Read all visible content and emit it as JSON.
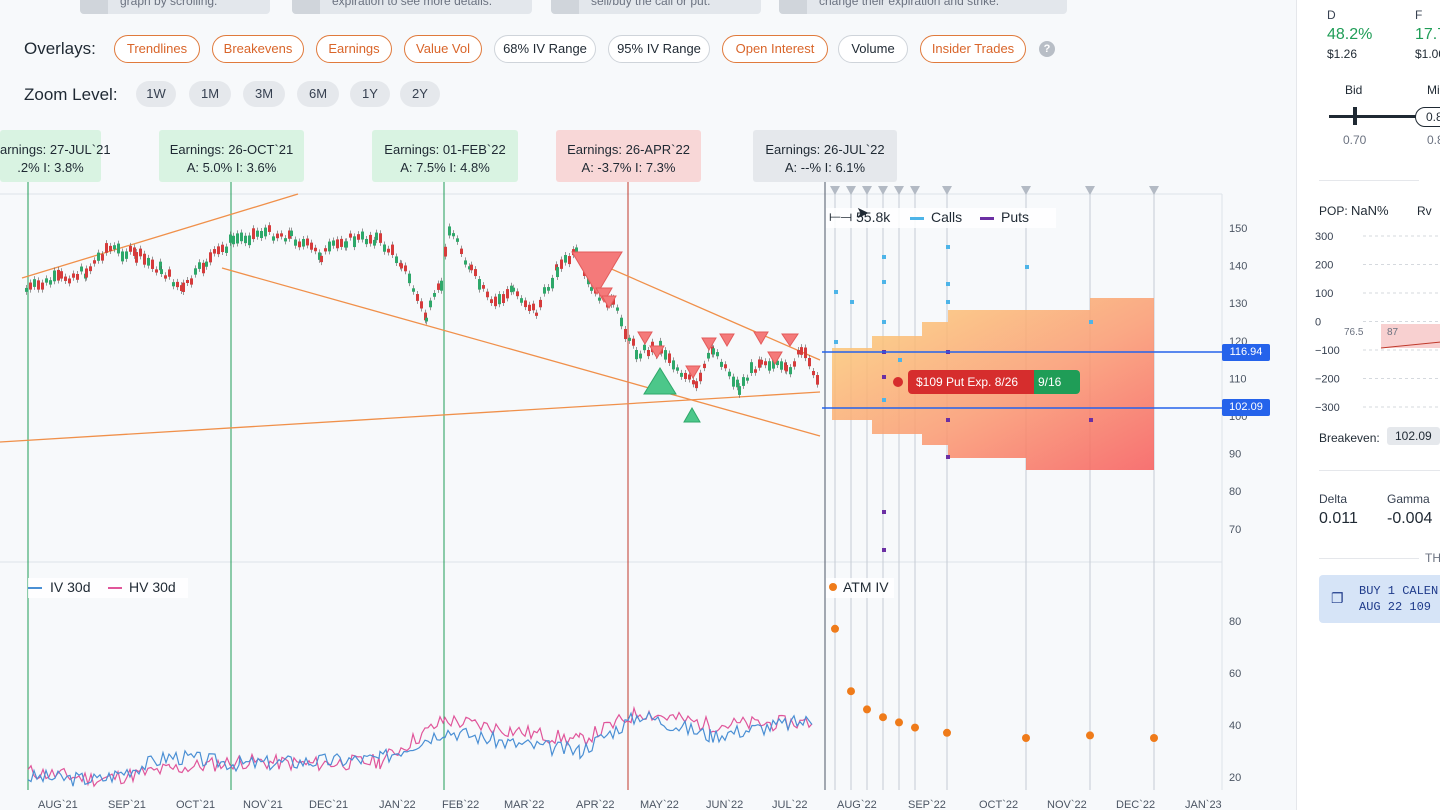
{
  "hints": [
    "graph by scrolling.",
    "expiration to see more details.",
    "sell/buy the call or put.",
    "change their expiration and strike."
  ],
  "overlays": {
    "label": "Overlays:",
    "items": [
      {
        "label": "Trendlines",
        "active": true
      },
      {
        "label": "Breakevens",
        "active": true
      },
      {
        "label": "Earnings",
        "active": true
      },
      {
        "label": "Value Vol",
        "active": true
      },
      {
        "label": "68% IV Range",
        "active": false
      },
      {
        "label": "95% IV Range",
        "active": false
      },
      {
        "label": "Open Interest",
        "active": true
      },
      {
        "label": "Volume",
        "active": false
      },
      {
        "label": "Insider Trades",
        "active": true
      }
    ],
    "help": "?"
  },
  "zoom": {
    "label": "Zoom Level:",
    "items": [
      "1W",
      "1M",
      "3M",
      "6M",
      "1Y",
      "2Y"
    ]
  },
  "earnings": [
    {
      "title": "arnings: 27-JUL`21",
      "stats": ".2%   I: 3.8%",
      "tone": "g"
    },
    {
      "title": "Earnings: 26-OCT`21",
      "stats": "A: 5.0%   I: 3.6%",
      "tone": "g"
    },
    {
      "title": "Earnings: 01-FEB`22",
      "stats": "A: 7.5%   I: 4.8%",
      "tone": "g"
    },
    {
      "title": "Earnings: 26-APR`22",
      "stats": "A: -3.7%   I: 7.3%",
      "tone": "r"
    },
    {
      "title": "Earnings: 26-JUL`22",
      "stats": "A: --%   I: 6.1%",
      "tone": "n"
    }
  ],
  "price_axis": [
    "150",
    "140",
    "130",
    "120",
    "110",
    "100",
    "90",
    "80",
    "70"
  ],
  "price_tags": {
    "upper": "116.94",
    "lower": "102.09"
  },
  "oi_legend": {
    "range": "55.8k",
    "calls": "Calls",
    "puts": "Puts"
  },
  "put_label": {
    "main": "$109 Put Exp. 8/26",
    "second": "9/16"
  },
  "iv_legend": {
    "iv": "IV 30d",
    "hv": "HV 30d",
    "atm": "ATM IV"
  },
  "iv_axis": [
    "80",
    "60",
    "40",
    "20"
  ],
  "x_axis": [
    "AUG`21",
    "SEP`21",
    "OCT`21",
    "NOV`21",
    "DEC`21",
    "JAN`22",
    "FEB`22",
    "MAR`22",
    "APR`22",
    "MAY`22",
    "JUN`22",
    "JUL`22",
    "AUG`22",
    "SEP`22",
    "OCT`22",
    "NOV`22",
    "DEC`22",
    "JAN`23"
  ],
  "colors": {
    "accent": "#e07a3c",
    "iv": "#4a8fd4",
    "hv": "#e0559a",
    "atm": "#ef7b1a",
    "blue": "#2563eb"
  },
  "chart_data": [
    {
      "type": "line",
      "series": [
        {
          "name": "IV 30d",
          "x": [
            "AUG`21",
            "SEP`21",
            "OCT`21",
            "NOV`21",
            "DEC`21",
            "JAN`22",
            "FEB`22",
            "MAR`22",
            "APR`22",
            "MAY`22",
            "JUN`22",
            "JUL`22"
          ],
          "values": [
            20,
            19,
            28,
            25,
            26,
            27,
            38,
            33,
            30,
            44,
            36,
            42
          ]
        },
        {
          "name": "HV 30d",
          "x": [
            "AUG`21",
            "SEP`21",
            "OCT`21",
            "NOV`21",
            "DEC`21",
            "JAN`22",
            "FEB`22",
            "MAR`22",
            "APR`22",
            "MAY`22",
            "JUN`22",
            "JUL`22"
          ],
          "values": [
            22,
            19,
            23,
            26,
            25,
            26,
            42,
            38,
            34,
            45,
            40,
            41
          ]
        },
        {
          "name": "ATM IV",
          "x": [
            "AUG`22",
            "AUG`22",
            "AUG`22",
            "AUG`22",
            "SEP`22",
            "SEP`22",
            "SEP`22",
            "OCT`22",
            "NOV`22",
            "DEC`22"
          ],
          "values": [
            77,
            53,
            46,
            43,
            41,
            39,
            37,
            35,
            36,
            35
          ]
        }
      ],
      "ylim": [
        15,
        90
      ]
    }
  ],
  "side": {
    "d_label": "D",
    "d_value": "48.2%",
    "d_sub": "$1.26",
    "f_label": "F",
    "f_value": "17.7",
    "f_sub": "$1.00",
    "bid_label": "Bid",
    "bid_value": "0.70",
    "mid_label": "Mi",
    "mid_value": "0.8",
    "mid_sub": "0.8",
    "pop_label": "POP:",
    "pop_value": "NaN%",
    "rv_label": "Rv",
    "pl_axis": [
      "300",
      "200",
      "100",
      "0",
      "−100",
      "−200",
      "−300"
    ],
    "pl_marks": [
      "76.5",
      "87"
    ],
    "breakeven_label": "Breakeven:",
    "breakeven_value": "102.09",
    "delta_label": "Delta",
    "delta_value": "0.011",
    "gamma_label": "Gamma",
    "gamma_value": "-0.004",
    "th_label": "TH",
    "order_line1": "BUY 1 CALEN",
    "order_line2": "AUG 22 109"
  }
}
